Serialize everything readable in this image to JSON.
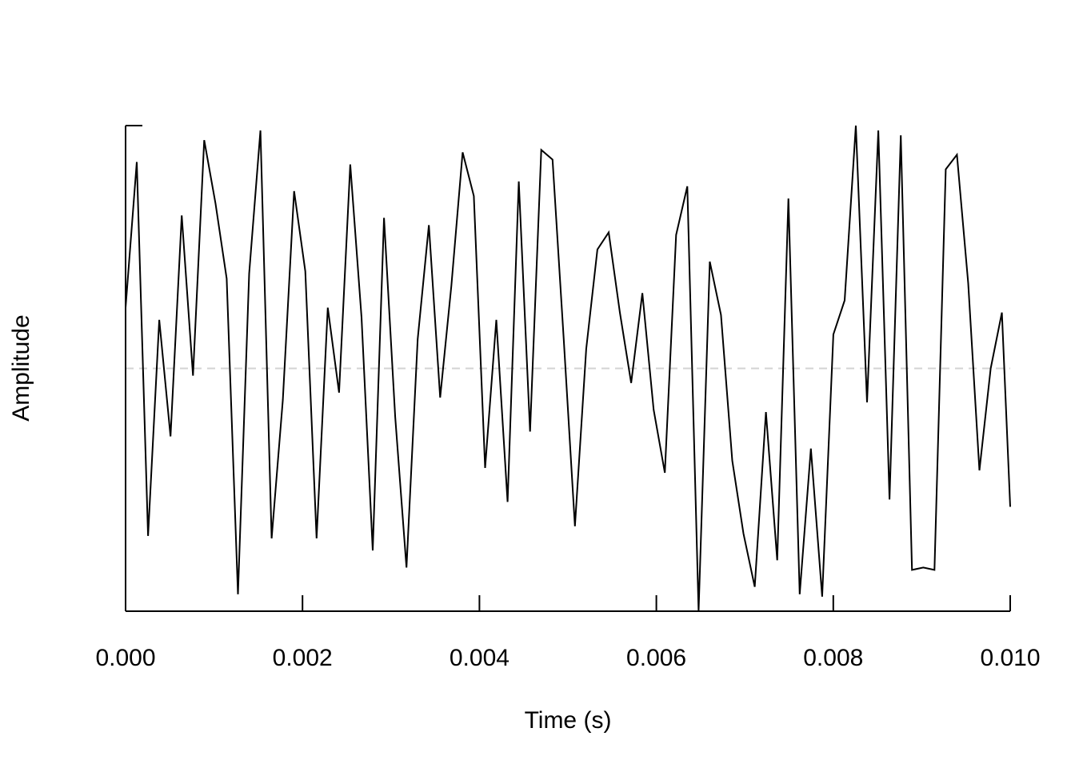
{
  "chart_data": {
    "type": "line",
    "title": "",
    "xlabel": "Time (s)",
    "ylabel": "Amplitude",
    "xlim": [
      0,
      0.01
    ],
    "ylim": [
      -1,
      1
    ],
    "x_ticks": [
      0,
      0.002,
      0.004,
      0.006,
      0.008,
      0.01
    ],
    "x_tick_labels": [
      "0.000",
      "0.002",
      "0.004",
      "0.006",
      "0.008",
      "0.010"
    ],
    "y_ticks_shown": false,
    "reference_line": {
      "y": 0,
      "style": "dashed",
      "color": "#d3d3d3"
    },
    "line_color": "#000000",
    "x": [
      0.0,
      0.000127,
      0.000254,
      0.000381,
      0.000508,
      0.000635,
      0.000762,
      0.000889,
      0.001016,
      0.001143,
      0.00127,
      0.001397,
      0.001524,
      0.001651,
      0.001778,
      0.001905,
      0.002032,
      0.002159,
      0.002286,
      0.002413,
      0.00254,
      0.002667,
      0.002794,
      0.002921,
      0.003048,
      0.003175,
      0.003302,
      0.003429,
      0.003556,
      0.003683,
      0.00381,
      0.003937,
      0.004064,
      0.004191,
      0.004318,
      0.004445,
      0.004572,
      0.004699,
      0.004826,
      0.004953,
      0.00508,
      0.005207,
      0.005334,
      0.005461,
      0.005588,
      0.005715,
      0.005842,
      0.005969,
      0.006096,
      0.006223,
      0.00635,
      0.006477,
      0.006604,
      0.006731,
      0.006858,
      0.006985,
      0.007112,
      0.007239,
      0.007366,
      0.007493,
      0.00762,
      0.007747,
      0.007874,
      0.008001,
      0.008128,
      0.008255,
      0.008382,
      0.008509,
      0.008636,
      0.008763,
      0.00889,
      0.009017,
      0.009144,
      0.009271,
      0.009398,
      0.009525,
      0.009652,
      0.009779,
      0.009906,
      0.01
    ],
    "values": [
      0.25,
      0.85,
      -0.69,
      0.2,
      -0.28,
      0.63,
      -0.03,
      0.94,
      0.68,
      0.37,
      -0.93,
      0.39,
      0.98,
      -0.7,
      -0.13,
      0.73,
      0.4,
      -0.7,
      0.25,
      -0.1,
      0.84,
      0.21,
      -0.75,
      0.62,
      -0.2,
      -0.82,
      0.12,
      0.59,
      -0.12,
      0.34,
      0.89,
      0.71,
      -0.41,
      0.2,
      -0.55,
      0.77,
      -0.26,
      0.9,
      0.86,
      0.12,
      -0.65,
      0.08,
      0.49,
      0.56,
      0.23,
      -0.06,
      0.31,
      -0.17,
      -0.43,
      0.55,
      0.75,
      -1.0,
      0.44,
      0.22,
      -0.38,
      -0.68,
      -0.9,
      -0.18,
      -0.79,
      0.7,
      -0.93,
      -0.33,
      -0.94,
      0.14,
      0.28,
      1.0,
      -0.14,
      0.98,
      -0.54,
      0.96,
      -0.83,
      -0.82,
      -0.83,
      0.82,
      0.88,
      0.35,
      -0.42,
      0.0,
      0.23,
      -0.57
    ]
  }
}
